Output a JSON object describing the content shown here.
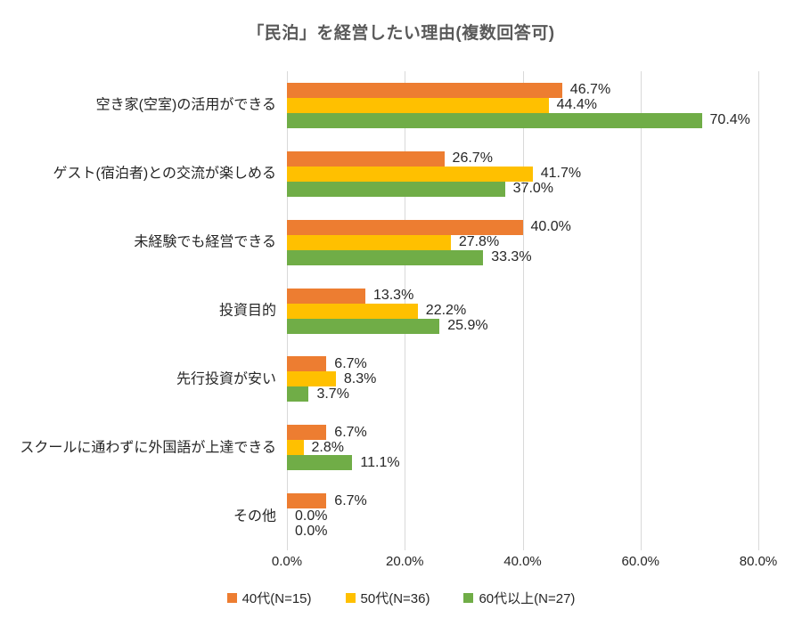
{
  "chart_data": {
    "type": "bar",
    "orientation": "horizontal",
    "title": "「民泊」を経営したい理由(複数回答可)",
    "categories": [
      "空き家(空室)の活用ができる",
      "ゲスト(宿泊者)との交流が楽しめる",
      "未経験でも経営できる",
      "投資目的",
      "先行投資が安い",
      "スクールに通わずに外国語が上達できる",
      "その他"
    ],
    "series": [
      {
        "name": "40代(N=15)",
        "color": "#ED7D31",
        "values": [
          46.7,
          26.7,
          40.0,
          13.3,
          6.7,
          6.7,
          6.7
        ]
      },
      {
        "name": "50代(N=36)",
        "color": "#FFC000",
        "values": [
          44.4,
          41.7,
          27.8,
          22.2,
          8.3,
          2.8,
          0.0
        ]
      },
      {
        "name": "60代以上(N=27)",
        "color": "#70AD47",
        "values": [
          70.4,
          37.0,
          33.3,
          25.9,
          3.7,
          11.1,
          0.0
        ]
      }
    ],
    "xlim": [
      0,
      80
    ],
    "x_ticks": [
      0,
      20,
      40,
      60,
      80
    ],
    "x_tick_labels": [
      "0.0%",
      "20.0%",
      "40.0%",
      "60.0%",
      "80.0%"
    ],
    "value_label_suffix": "%",
    "grid": true,
    "legend_position": "bottom",
    "colors": {
      "gridline": "#D9D9D9",
      "title_text": "#595959",
      "body_text": "#262626",
      "background": "#FFFFFF"
    }
  }
}
